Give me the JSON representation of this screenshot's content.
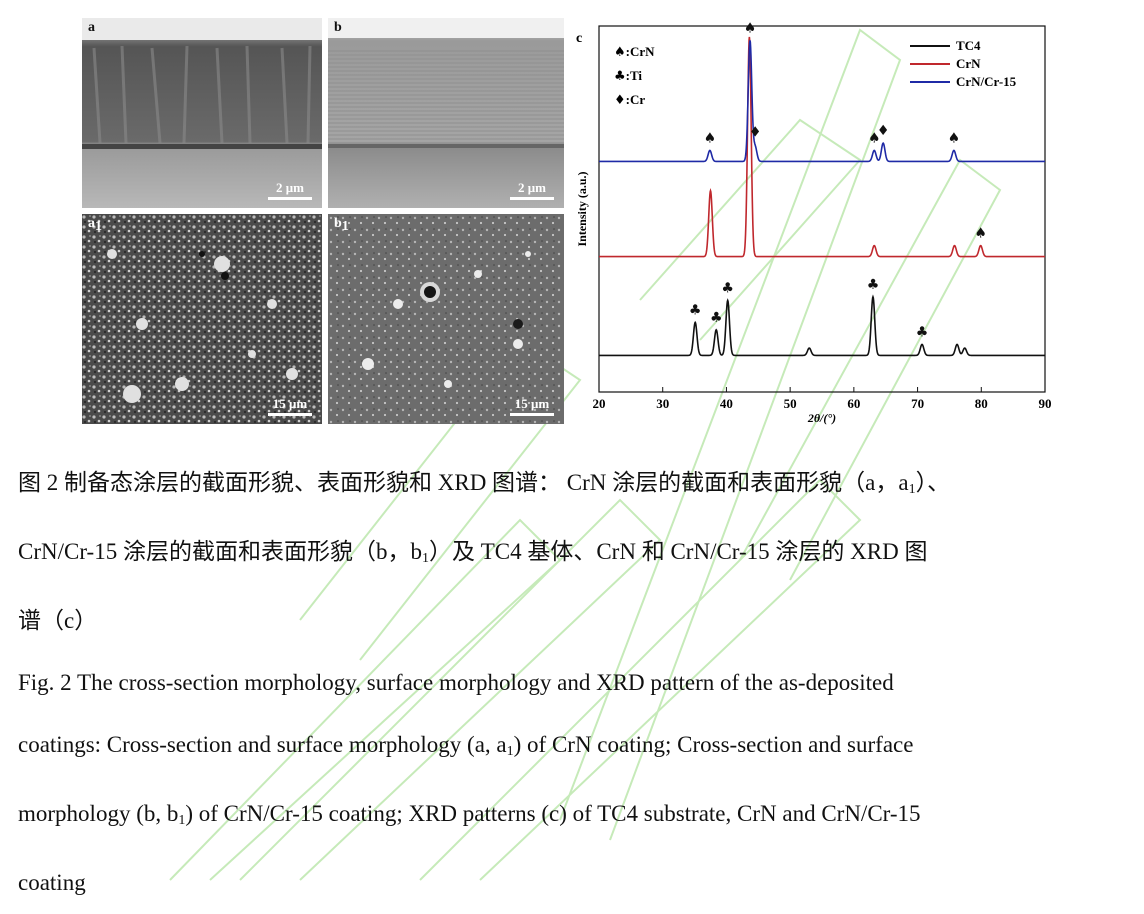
{
  "panels": {
    "a": {
      "letter": "a",
      "scale": "2 μm"
    },
    "b": {
      "letter": "b",
      "scale": "2 μm"
    },
    "a1": {
      "letter": "a",
      "sub": "1",
      "scale": "15 μm"
    },
    "b1": {
      "letter": "b",
      "sub": "1",
      "scale": "15 μm"
    }
  },
  "chart_data": {
    "type": "line",
    "panel_letter": "c",
    "xlabel": "2θ/(°)",
    "ylabel": "Intensity (a.u.)",
    "xlim": [
      20,
      90
    ],
    "xticks": [
      20,
      30,
      40,
      50,
      60,
      70,
      80,
      90
    ],
    "symbol_legend": [
      {
        "symbol": "♠",
        "label": ":CrN"
      },
      {
        "symbol": "♣",
        "label": ":Ti"
      },
      {
        "symbol": "♦",
        "label": ":Cr"
      }
    ],
    "series": [
      {
        "name": "TC4",
        "color": "#111111",
        "baseline": 0.1,
        "peaks": [
          [
            35.1,
            0.09
          ],
          [
            38.4,
            0.07
          ],
          [
            40.2,
            0.15
          ],
          [
            53.0,
            0.02
          ],
          [
            63.0,
            0.16
          ],
          [
            70.7,
            0.03
          ],
          [
            76.2,
            0.03
          ],
          [
            77.4,
            0.02
          ]
        ]
      },
      {
        "name": "CrN",
        "color": "#c0282d",
        "baseline": 0.37,
        "peaks": [
          [
            37.5,
            0.18
          ],
          [
            43.6,
            0.6
          ],
          [
            63.2,
            0.03
          ],
          [
            75.8,
            0.03
          ],
          [
            79.9,
            0.03
          ]
        ]
      },
      {
        "name": "CrN/Cr-15",
        "color": "#1f2aa6",
        "baseline": 0.63,
        "peaks": [
          [
            37.4,
            0.03
          ],
          [
            43.7,
            0.33
          ],
          [
            44.5,
            0.04
          ],
          [
            63.2,
            0.03
          ],
          [
            64.6,
            0.05
          ],
          [
            75.7,
            0.03
          ]
        ]
      }
    ],
    "peak_markers": [
      {
        "symbol": "♣",
        "x": 35.1,
        "series": 0
      },
      {
        "symbol": "♣",
        "x": 38.4,
        "series": 0
      },
      {
        "symbol": "♣",
        "x": 40.2,
        "series": 0
      },
      {
        "symbol": "♣",
        "x": 63.0,
        "series": 0
      },
      {
        "symbol": "♣",
        "x": 70.7,
        "series": 0
      },
      {
        "symbol": "♠",
        "x": 79.9,
        "series": 1
      },
      {
        "symbol": "♠",
        "x": 37.4,
        "series": 2
      },
      {
        "symbol": "♠",
        "x": 43.7,
        "series": 2
      },
      {
        "symbol": "♦",
        "x": 44.5,
        "series": 2
      },
      {
        "symbol": "♠",
        "x": 63.2,
        "series": 2
      },
      {
        "symbol": "♦",
        "x": 64.6,
        "series": 2
      },
      {
        "symbol": "♠",
        "x": 75.7,
        "series": 2
      }
    ]
  },
  "caption": {
    "zh_1": "图 2  制备态涂层的截面形貌、表面形貌和 XRD 图谱： CrN 涂层的截面和表面形貌（a，a",
    "zh_1_sub": "1",
    "zh_1_end": "）、",
    "zh_2a": "CrN/Cr-15 涂层的截面和表面形貌（b，b",
    "zh_2_sub": "1",
    "zh_2b": "）及 TC4 基体、CrN 和 CrN/Cr-15 涂层的 XRD 图",
    "zh_3": "谱（c）",
    "en_1": "Fig. 2 The cross-section morphology, surface morphology and XRD pattern of the as-deposited",
    "en_2a": "coatings: Cross-section and surface morphology (a, a",
    "en_2_sub": "1",
    "en_2b": ") of CrN coating; Cross-section and surface",
    "en_3a": "morphology (b, b",
    "en_3_sub": "1",
    "en_3b": ") of CrN/Cr-15 coating; XRD patterns (c) of TC4 substrate, CrN and CrN/Cr-15",
    "en_4": "coating"
  }
}
